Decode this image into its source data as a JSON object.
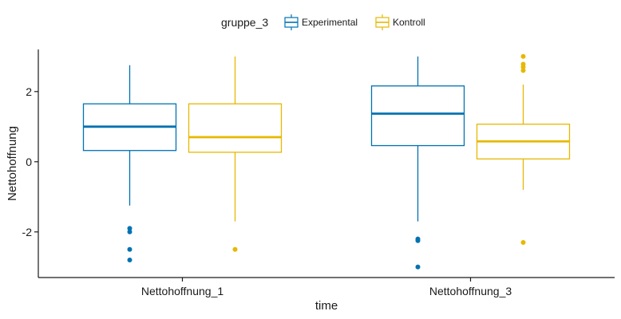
{
  "chart_data": {
    "type": "boxplot",
    "xlabel": "time",
    "ylabel": "Nettohoffnung",
    "ylim": [
      -3.3,
      3.2
    ],
    "yticks": [
      -2,
      0,
      2
    ],
    "grid": false,
    "legend": {
      "title": "gruppe_3",
      "placement": "top"
    },
    "categories": [
      "Nettohoffnung_1",
      "Nettohoffnung_3"
    ],
    "series": [
      {
        "name": "Experimental",
        "color": "#0072B2",
        "boxes": [
          {
            "whisker_low": -1.25,
            "q1": 0.32,
            "median": 1.0,
            "q3": 1.65,
            "whisker_high": 2.75,
            "outliers": [
              -1.9,
              -2.0,
              -2.5,
              -2.8
            ]
          },
          {
            "whisker_low": -1.7,
            "q1": 0.46,
            "median": 1.37,
            "q3": 2.16,
            "whisker_high": 3.0,
            "outliers": [
              -2.2,
              -2.25,
              -3.0
            ]
          }
        ]
      },
      {
        "name": "Kontroll",
        "color": "#E7B800",
        "boxes": [
          {
            "whisker_low": -1.7,
            "q1": 0.27,
            "median": 0.7,
            "q3": 1.65,
            "whisker_high": 3.0,
            "outliers": [
              -2.5
            ]
          },
          {
            "whisker_low": -0.8,
            "q1": 0.08,
            "median": 0.58,
            "q3": 1.07,
            "whisker_high": 2.2,
            "outliers": [
              2.6,
              2.7,
              2.78,
              3.0,
              -2.3
            ]
          }
        ]
      }
    ]
  }
}
